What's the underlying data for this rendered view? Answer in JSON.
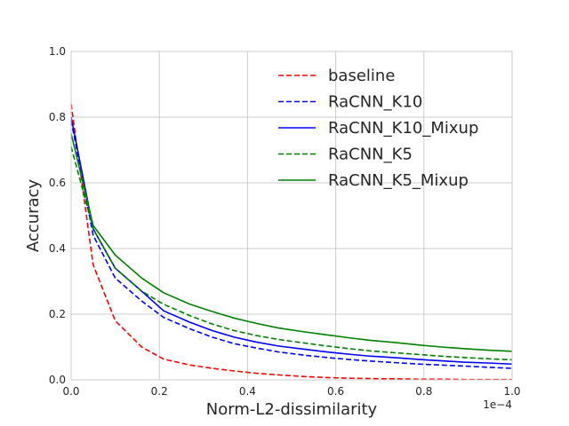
{
  "chart_data": {
    "type": "line",
    "xlabel": "Norm-L2-dissimilarity",
    "ylabel": "Accuracy",
    "x_offset_label": "1e−4",
    "xlim": [
      0,
      1.0
    ],
    "ylim": [
      0,
      1.0
    ],
    "xticks": [
      0.0,
      0.2,
      0.4,
      0.6,
      0.8,
      1.0
    ],
    "xtick_labels": [
      "0.0",
      "0.2",
      "0.4",
      "0.6",
      "0.8",
      "1.0"
    ],
    "yticks": [
      0.0,
      0.2,
      0.4,
      0.6,
      0.8,
      1.0
    ],
    "ytick_labels": [
      "0.0",
      "0.2",
      "0.4",
      "0.6",
      "0.8",
      "1.0"
    ],
    "grid": true,
    "legend_position": "top-right",
    "x": [
      0.0,
      0.05,
      0.1,
      0.16,
      0.21,
      0.27,
      0.32,
      0.37,
      0.42,
      0.47,
      0.53,
      0.58,
      0.63,
      0.68,
      0.74,
      0.79,
      0.84,
      0.89,
      0.95,
      1.0
    ],
    "series": [
      {
        "name": "baseline",
        "color": "#ff0000",
        "dash": "dashed",
        "values": [
          0.84,
          0.35,
          0.18,
          0.1,
          0.063,
          0.045,
          0.035,
          0.027,
          0.02,
          0.015,
          0.01,
          0.007,
          0.005,
          0.004,
          0.003,
          0.002,
          0.002,
          0.001,
          0.001,
          0.001
        ]
      },
      {
        "name": "RaCNN_K10",
        "color": "#0000ff",
        "dash": "dashed",
        "values": [
          0.79,
          0.44,
          0.31,
          0.24,
          0.19,
          0.155,
          0.13,
          0.11,
          0.097,
          0.085,
          0.075,
          0.068,
          0.062,
          0.057,
          0.052,
          0.048,
          0.045,
          0.042,
          0.038,
          0.035
        ]
      },
      {
        "name": "RaCNN_K10_Mixup",
        "color": "#0000ff",
        "dash": "solid",
        "values": [
          0.8,
          0.46,
          0.34,
          0.27,
          0.21,
          0.175,
          0.15,
          0.13,
          0.115,
          0.103,
          0.093,
          0.085,
          0.078,
          0.072,
          0.067,
          0.062,
          0.058,
          0.054,
          0.051,
          0.048
        ]
      },
      {
        "name": "RaCNN_K5",
        "color": "#008000",
        "dash": "dashed",
        "values": [
          0.71,
          0.46,
          0.34,
          0.27,
          0.23,
          0.195,
          0.17,
          0.15,
          0.135,
          0.123,
          0.112,
          0.103,
          0.095,
          0.088,
          0.082,
          0.077,
          0.072,
          0.068,
          0.064,
          0.061
        ]
      },
      {
        "name": "RaCNN_K5_Mixup",
        "color": "#008000",
        "dash": "solid",
        "values": [
          0.75,
          0.47,
          0.38,
          0.31,
          0.265,
          0.23,
          0.208,
          0.188,
          0.172,
          0.158,
          0.146,
          0.137,
          0.128,
          0.12,
          0.113,
          0.106,
          0.1,
          0.095,
          0.09,
          0.087
        ]
      }
    ]
  }
}
